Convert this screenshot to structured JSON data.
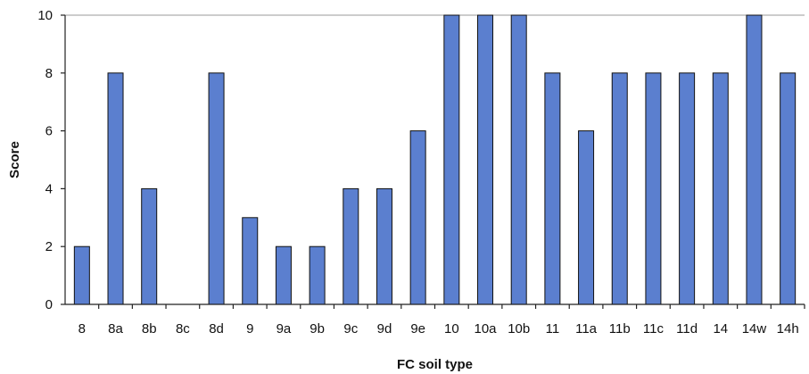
{
  "chart_data": {
    "type": "bar",
    "title": "",
    "xlabel": "FC soil type",
    "ylabel": "Score",
    "ylim": [
      0,
      10
    ],
    "yticks": [
      0,
      2,
      4,
      6,
      8,
      10
    ],
    "grid": "horizontal at top only",
    "legend": "none",
    "bar_color": "#5b7fcf",
    "categories": [
      "8",
      "8a",
      "8b",
      "8c",
      "8d",
      "9",
      "9a",
      "9b",
      "9c",
      "9d",
      "9e",
      "10",
      "10a",
      "10b",
      "11",
      "11a",
      "11b",
      "11c",
      "11d",
      "14",
      "14w",
      "14h"
    ],
    "values": [
      2,
      8,
      4,
      0,
      8,
      3,
      2,
      2,
      4,
      4,
      6,
      10,
      10,
      10,
      8,
      6,
      8,
      8,
      8,
      8,
      10,
      8
    ]
  }
}
